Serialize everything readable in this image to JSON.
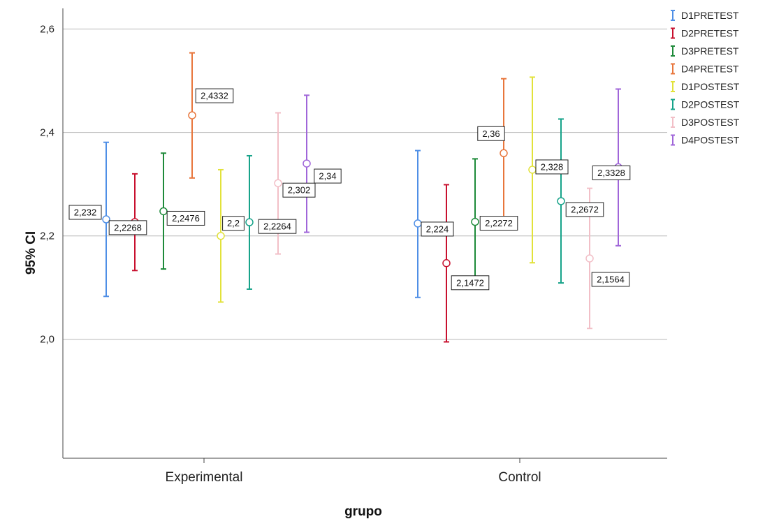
{
  "chart_data": {
    "type": "errorbar",
    "xlabel": "grupo",
    "ylabel": "95% CI",
    "ylim": [
      1.77,
      2.64
    ],
    "yticks": [
      "2,0",
      "2,2",
      "2,4",
      "2,6"
    ],
    "ytick_values": [
      2.0,
      2.2,
      2.4,
      2.6
    ],
    "grid": true,
    "legend_position": "top-right",
    "categories": [
      "Experimental",
      "Control"
    ],
    "series": [
      {
        "name": "D1PRETEST",
        "color": "#4f8fe6",
        "mean": [
          2.232,
          2.224
        ],
        "lower": [
          2.083,
          2.081
        ],
        "upper": [
          2.381,
          2.365
        ],
        "labels": [
          "2,232",
          "2,224"
        ]
      },
      {
        "name": "D2PRETEST",
        "color": "#c8102e",
        "mean": [
          2.2268,
          2.1472
        ],
        "lower": [
          2.133,
          1.995
        ],
        "upper": [
          2.32,
          2.299
        ],
        "labels": [
          "2,2268",
          "2,1472"
        ]
      },
      {
        "name": "D3PRETEST",
        "color": "#1e8a3a",
        "mean": [
          2.2476,
          2.2272
        ],
        "lower": [
          2.136,
          2.105
        ],
        "upper": [
          2.36,
          2.349
        ],
        "labels": [
          "2,2476",
          "2,2272"
        ]
      },
      {
        "name": "D4PRETEST",
        "color": "#e8763c",
        "mean": [
          2.4332,
          2.36
        ],
        "lower": [
          2.312,
          2.215
        ],
        "upper": [
          2.554,
          2.504
        ],
        "labels": [
          "2,4332",
          "2,36"
        ]
      },
      {
        "name": "D1POSTEST",
        "color": "#e2e23a",
        "mean": [
          2.2,
          2.328
        ],
        "lower": [
          2.072,
          2.148
        ],
        "upper": [
          2.328,
          2.507
        ],
        "labels": [
          "2,2",
          "2,328"
        ]
      },
      {
        "name": "D2POSTEST",
        "color": "#17a38a",
        "mean": [
          2.2264,
          2.2672
        ],
        "lower": [
          2.097,
          2.109
        ],
        "upper": [
          2.355,
          2.426
        ],
        "labels": [
          "2,2264",
          "2,2672"
        ]
      },
      {
        "name": "D3POSTEST",
        "color": "#f2bfc7",
        "mean": [
          2.302,
          2.1564
        ],
        "lower": [
          2.165,
          2.021
        ],
        "upper": [
          2.438,
          2.292
        ],
        "labels": [
          "2,302",
          "2,1564"
        ]
      },
      {
        "name": "D4POSTEST",
        "color": "#a066d9",
        "mean": [
          2.34,
          2.3328
        ],
        "lower": [
          2.207,
          2.181
        ],
        "upper": [
          2.472,
          2.484
        ],
        "labels": [
          "2,34",
          "2,3328"
        ]
      }
    ]
  }
}
